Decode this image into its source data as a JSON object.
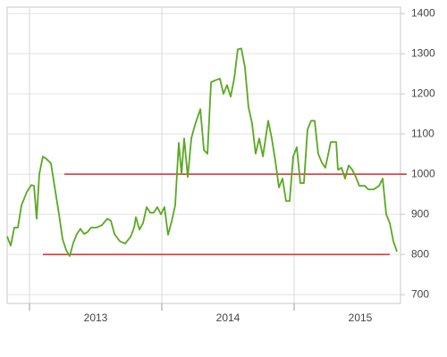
{
  "chart_data": {
    "type": "line",
    "x": [
      2012.831,
      2012.858,
      2012.885,
      2012.912,
      2012.939,
      2012.98,
      2013.014,
      2013.034,
      2013.054,
      2013.074,
      2013.101,
      2013.128,
      2013.162,
      2013.196,
      2013.223,
      2013.25,
      2013.277,
      2013.304,
      2013.331,
      2013.358,
      2013.385,
      2013.412,
      2013.439,
      2013.466,
      2013.507,
      2013.547,
      2013.588,
      2013.615,
      2013.642,
      2013.682,
      2013.723,
      2013.764,
      2013.791,
      2013.804,
      2013.831,
      2013.858,
      2013.885,
      2013.912,
      2013.939,
      2013.966,
      2013.993,
      2014.02,
      2014.047,
      2014.074,
      2014.101,
      2014.128,
      2014.149,
      2014.169,
      2014.196,
      2014.223,
      2014.25,
      2014.291,
      2014.318,
      2014.345,
      2014.372,
      2014.399,
      2014.439,
      2014.466,
      2014.493,
      2014.52,
      2014.547,
      2014.574,
      2014.601,
      2014.628,
      2014.655,
      2014.682,
      2014.709,
      2014.736,
      2014.764,
      2014.804,
      2014.831,
      2014.858,
      2014.885,
      2014.912,
      2014.939,
      2014.966,
      2014.993,
      2015.02,
      2015.047,
      2015.074,
      2015.101,
      2015.128,
      2015.155,
      2015.182,
      2015.209,
      2015.236,
      2015.277,
      2015.318,
      2015.331,
      2015.358,
      2015.385,
      2015.412,
      2015.439,
      2015.466,
      2015.493,
      2015.534,
      2015.561,
      2015.601,
      2015.642,
      2015.669,
      2015.696,
      2015.723,
      2015.75,
      2015.777
    ],
    "series": [
      {
        "color": "#5aa822",
        "values": [
          845,
          822,
          867,
          867,
          922,
          956,
          973,
          971,
          889,
          1000,
          1044,
          1038,
          1027,
          956,
          900,
          838,
          811,
          796,
          829,
          851,
          864,
          851,
          856,
          867,
          867,
          873,
          889,
          884,
          851,
          833,
          827,
          844,
          867,
          893,
          862,
          878,
          918,
          904,
          904,
          918,
          900,
          918,
          849,
          882,
          922,
          1078,
          1000,
          1089,
          993,
          1089,
          1122,
          1162,
          1060,
          1051,
          1229,
          1233,
          1238,
          1200,
          1222,
          1193,
          1238,
          1311,
          1313,
          1267,
          1167,
          1127,
          1051,
          1089,
          1044,
          1133,
          1089,
          1033,
          967,
          989,
          933,
          933,
          1044,
          1067,
          978,
          978,
          1111,
          1133,
          1133,
          1051,
          1029,
          1016,
          1080,
          1080,
          1011,
          1016,
          989,
          1022,
          1011,
          993,
          971,
          971,
          962,
          962,
          971,
          989,
          900,
          878,
          833,
          807
        ]
      }
    ],
    "reference_lines": [
      {
        "value": 1000,
        "x": [
          2013.264,
          2015.851
        ],
        "color": "#d42a2a"
      },
      {
        "value": 800,
        "x": [
          2013.101,
          2015.723
        ],
        "color": "#d42a2a"
      }
    ],
    "xlim": [
      2012.831,
      2015.804
    ],
    "xticks": [
      2013,
      2014,
      2015
    ],
    "ylim": [
      678,
      1416
    ],
    "yticks": [
      700,
      800,
      900,
      1000,
      1100,
      1200,
      1300,
      1400
    ],
    "grid": true
  }
}
